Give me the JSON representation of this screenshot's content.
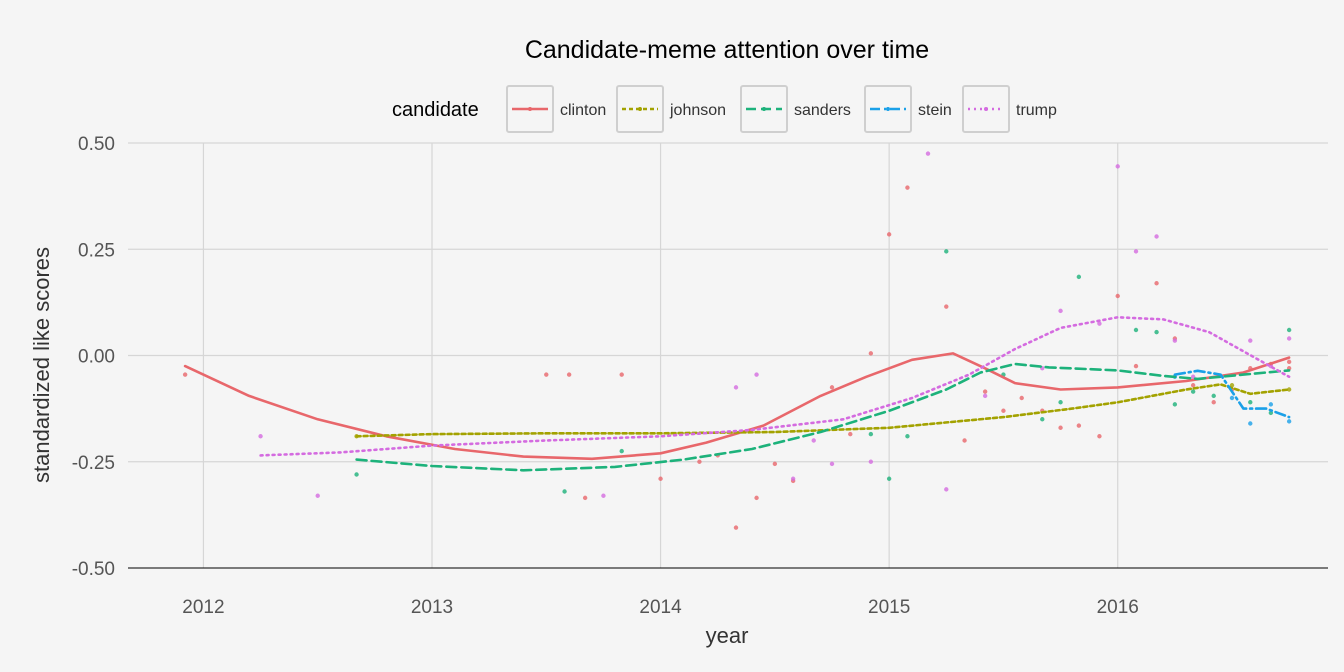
{
  "chart_data": {
    "type": "scatter",
    "title": "Candidate-meme attention over time",
    "xlabel": "year",
    "ylabel": "standardized like scores",
    "xlim": [
      2011.67,
      2016.92
    ],
    "ylim": [
      -0.5,
      0.5
    ],
    "x_ticks": [
      2012,
      2013,
      2014,
      2015,
      2016
    ],
    "x_tick_labels": [
      "2012",
      "2013",
      "2014",
      "2015",
      "2016"
    ],
    "y_ticks": [
      -0.5,
      -0.25,
      0,
      0.25,
      0.5
    ],
    "y_tick_labels": [
      "-0.50",
      "-0.25",
      "0.00",
      "0.25",
      "0.50"
    ],
    "grid": true,
    "legend": {
      "title": "candidate",
      "position": "top"
    },
    "series": [
      {
        "name": "clinton",
        "color": "#e8676b",
        "dash": "solid",
        "smooth": [
          [
            2011.92,
            -0.025
          ],
          [
            2012.2,
            -0.095
          ],
          [
            2012.5,
            -0.15
          ],
          [
            2012.8,
            -0.19
          ],
          [
            2013.1,
            -0.22
          ],
          [
            2013.4,
            -0.238
          ],
          [
            2013.7,
            -0.243
          ],
          [
            2014.0,
            -0.23
          ],
          [
            2014.2,
            -0.205
          ],
          [
            2014.45,
            -0.165
          ],
          [
            2014.7,
            -0.095
          ],
          [
            2014.9,
            -0.05
          ],
          [
            2015.1,
            -0.01
          ],
          [
            2015.28,
            0.005
          ],
          [
            2015.42,
            -0.03
          ],
          [
            2015.55,
            -0.065
          ],
          [
            2015.75,
            -0.08
          ],
          [
            2016.0,
            -0.075
          ],
          [
            2016.3,
            -0.06
          ],
          [
            2016.55,
            -0.04
          ],
          [
            2016.75,
            -0.005
          ]
        ],
        "points": [
          [
            2011.92,
            -0.045
          ],
          [
            2013.5,
            -0.045
          ],
          [
            2013.6,
            -0.045
          ],
          [
            2013.67,
            -0.335
          ],
          [
            2013.83,
            -0.045
          ],
          [
            2014.0,
            -0.29
          ],
          [
            2014.17,
            -0.25
          ],
          [
            2014.25,
            -0.235
          ],
          [
            2014.33,
            -0.405
          ],
          [
            2014.42,
            -0.335
          ],
          [
            2014.5,
            -0.255
          ],
          [
            2014.58,
            -0.295
          ],
          [
            2014.75,
            -0.075
          ],
          [
            2014.83,
            -0.185
          ],
          [
            2014.92,
            0.005
          ],
          [
            2015.0,
            0.285
          ],
          [
            2015.08,
            0.395
          ],
          [
            2015.25,
            0.115
          ],
          [
            2015.33,
            -0.2
          ],
          [
            2015.42,
            -0.085
          ],
          [
            2015.5,
            -0.13
          ],
          [
            2015.58,
            -0.1
          ],
          [
            2015.67,
            -0.13
          ],
          [
            2015.75,
            -0.17
          ],
          [
            2015.83,
            -0.165
          ],
          [
            2015.92,
            -0.19
          ],
          [
            2016.0,
            0.14
          ],
          [
            2016.08,
            -0.025
          ],
          [
            2016.17,
            0.17
          ],
          [
            2016.25,
            0.04
          ],
          [
            2016.33,
            -0.07
          ],
          [
            2016.42,
            -0.11
          ],
          [
            2016.5,
            -0.08
          ],
          [
            2016.58,
            -0.03
          ],
          [
            2016.67,
            -0.02
          ],
          [
            2016.75,
            -0.03
          ],
          [
            2016.75,
            -0.015
          ]
        ]
      },
      {
        "name": "johnson",
        "color": "#a3a200",
        "dash": "short",
        "smooth": [
          [
            2012.67,
            -0.19
          ],
          [
            2013.0,
            -0.185
          ],
          [
            2013.5,
            -0.183
          ],
          [
            2014.0,
            -0.183
          ],
          [
            2014.5,
            -0.18
          ],
          [
            2015.0,
            -0.17
          ],
          [
            2015.5,
            -0.145
          ],
          [
            2015.8,
            -0.125
          ],
          [
            2016.0,
            -0.11
          ],
          [
            2016.3,
            -0.08
          ],
          [
            2016.45,
            -0.068
          ],
          [
            2016.58,
            -0.09
          ],
          [
            2016.75,
            -0.08
          ]
        ],
        "points": [
          [
            2012.67,
            -0.19
          ],
          [
            2016.5,
            -0.07
          ],
          [
            2016.75,
            -0.08
          ]
        ]
      },
      {
        "name": "sanders",
        "color": "#1db27b",
        "dash": "long",
        "smooth": [
          [
            2012.67,
            -0.245
          ],
          [
            2013.0,
            -0.26
          ],
          [
            2013.4,
            -0.27
          ],
          [
            2013.8,
            -0.262
          ],
          [
            2014.1,
            -0.245
          ],
          [
            2014.4,
            -0.22
          ],
          [
            2014.7,
            -0.18
          ],
          [
            2015.0,
            -0.13
          ],
          [
            2015.25,
            -0.08
          ],
          [
            2015.4,
            -0.04
          ],
          [
            2015.55,
            -0.02
          ],
          [
            2015.7,
            -0.028
          ],
          [
            2016.0,
            -0.035
          ],
          [
            2016.2,
            -0.048
          ],
          [
            2016.35,
            -0.055
          ],
          [
            2016.55,
            -0.045
          ],
          [
            2016.75,
            -0.035
          ]
        ],
        "points": [
          [
            2012.67,
            -0.28
          ],
          [
            2013.58,
            -0.32
          ],
          [
            2013.83,
            -0.225
          ],
          [
            2014.92,
            -0.185
          ],
          [
            2015.0,
            -0.29
          ],
          [
            2015.08,
            -0.19
          ],
          [
            2015.25,
            0.245
          ],
          [
            2015.5,
            -0.045
          ],
          [
            2015.67,
            -0.15
          ],
          [
            2015.75,
            -0.11
          ],
          [
            2015.83,
            0.185
          ],
          [
            2016.08,
            0.06
          ],
          [
            2016.17,
            0.055
          ],
          [
            2016.25,
            -0.115
          ],
          [
            2016.33,
            -0.085
          ],
          [
            2016.42,
            -0.095
          ],
          [
            2016.58,
            -0.11
          ],
          [
            2016.67,
            -0.135
          ],
          [
            2016.75,
            0.06
          ]
        ]
      },
      {
        "name": "stein",
        "color": "#1aa0e8",
        "dash": "dashdot",
        "smooth": [
          [
            2016.25,
            -0.045
          ],
          [
            2016.35,
            -0.036
          ],
          [
            2016.45,
            -0.045
          ],
          [
            2016.55,
            -0.125
          ],
          [
            2016.65,
            -0.125
          ],
          [
            2016.75,
            -0.145
          ]
        ],
        "points": [
          [
            2016.25,
            -0.05
          ],
          [
            2016.5,
            -0.1
          ],
          [
            2016.58,
            -0.16
          ],
          [
            2016.67,
            -0.115
          ],
          [
            2016.75,
            -0.155
          ]
        ]
      },
      {
        "name": "trump",
        "color": "#d46be0",
        "dash": "dotted",
        "smooth": [
          [
            2012.25,
            -0.235
          ],
          [
            2012.6,
            -0.228
          ],
          [
            2013.0,
            -0.212
          ],
          [
            2013.5,
            -0.2
          ],
          [
            2014.0,
            -0.19
          ],
          [
            2014.4,
            -0.175
          ],
          [
            2014.8,
            -0.15
          ],
          [
            2015.1,
            -0.1
          ],
          [
            2015.35,
            -0.045
          ],
          [
            2015.55,
            0.015
          ],
          [
            2015.75,
            0.065
          ],
          [
            2016.0,
            0.09
          ],
          [
            2016.2,
            0.085
          ],
          [
            2016.4,
            0.055
          ],
          [
            2016.55,
            0.01
          ],
          [
            2016.75,
            -0.05
          ]
        ],
        "points": [
          [
            2012.25,
            -0.19
          ],
          [
            2012.5,
            -0.33
          ],
          [
            2013.75,
            -0.33
          ],
          [
            2014.33,
            -0.075
          ],
          [
            2014.42,
            -0.045
          ],
          [
            2014.58,
            -0.29
          ],
          [
            2014.67,
            -0.2
          ],
          [
            2014.75,
            -0.255
          ],
          [
            2014.92,
            -0.25
          ],
          [
            2015.17,
            0.475
          ],
          [
            2015.25,
            -0.315
          ],
          [
            2015.42,
            -0.095
          ],
          [
            2015.67,
            -0.03
          ],
          [
            2015.75,
            0.105
          ],
          [
            2015.92,
            0.075
          ],
          [
            2016.0,
            0.445
          ],
          [
            2016.08,
            0.245
          ],
          [
            2016.17,
            0.28
          ],
          [
            2016.25,
            0.035
          ],
          [
            2016.33,
            -0.05
          ],
          [
            2016.58,
            0.035
          ],
          [
            2016.67,
            -0.025
          ],
          [
            2016.75,
            0.04
          ]
        ]
      }
    ]
  }
}
